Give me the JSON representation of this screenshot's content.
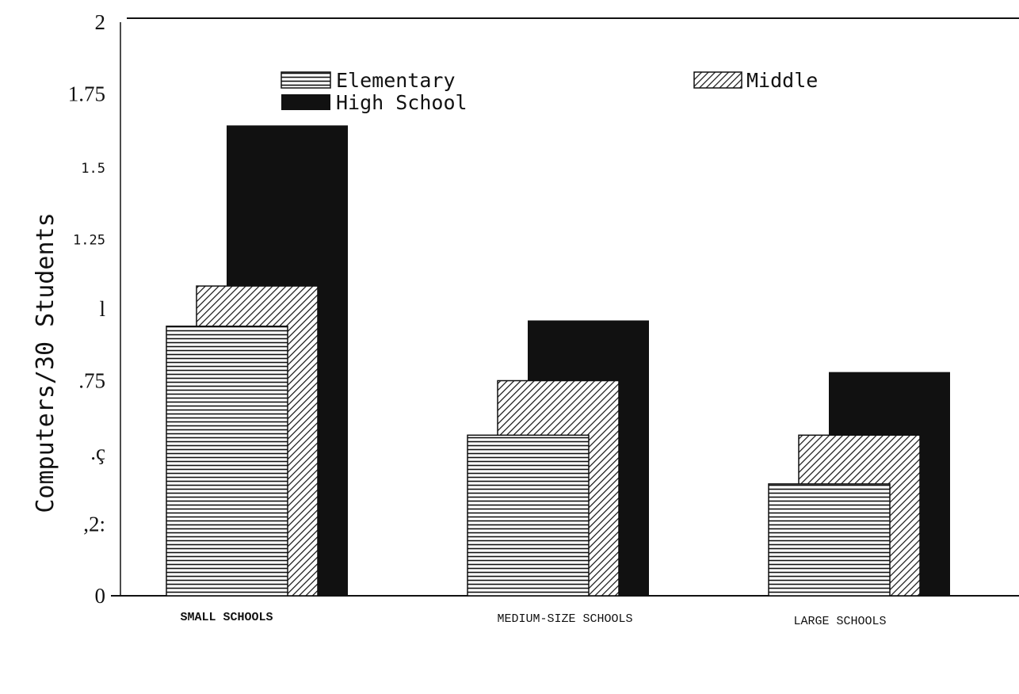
{
  "chart_data": {
    "type": "bar",
    "title": "",
    "xlabel": "",
    "ylabel": "Computers/30 Students",
    "ylim": [
      0,
      2
    ],
    "yticks": [
      0,
      0.25,
      0.5,
      0.75,
      1,
      1.25,
      1.5,
      1.75,
      2
    ],
    "ytick_labels": [
      "0",
      ",2:",
      ".ç",
      ".75",
      "l",
      "1.25",
      "1.5",
      "1.75",
      "2"
    ],
    "categories": [
      "SMALL SCHOOLS",
      "MEDIUM-SIZE SCHOOLS",
      "LARGE SCHOOLS"
    ],
    "series": [
      {
        "name": "Elementary",
        "values": [
          0.94,
          0.56,
          0.39
        ],
        "pattern": "horizontal-lines"
      },
      {
        "name": "Middle",
        "values": [
          1.08,
          0.75,
          0.56
        ],
        "pattern": "diagonal-hatch"
      },
      {
        "name": "High School",
        "values": [
          1.64,
          0.96,
          0.78
        ],
        "pattern": "solid-black"
      }
    ],
    "grid": false,
    "legend": "top"
  }
}
